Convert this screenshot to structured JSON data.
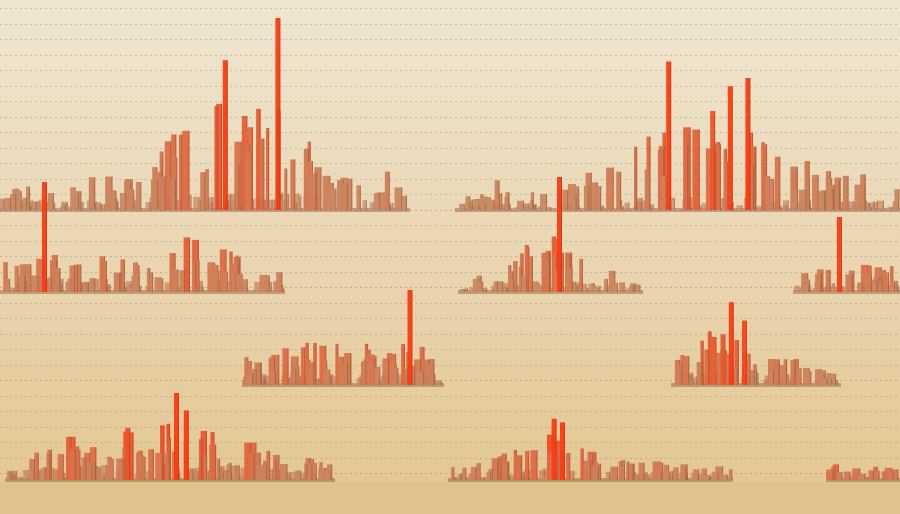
{
  "colors": {
    "bg_top": "#efe6d2",
    "bg_bottom": "#e3c590",
    "ground": "#e0c28c",
    "gridline": "#7f7a70",
    "gridline_hot": "#e0522e",
    "bar_base": "#c68d66",
    "bar_hot": "#ff3a10",
    "bar_shadow": "#6b3a22"
  },
  "clusters": [
    {
      "name": "cluster-row1-left",
      "seed": 11,
      "count": 70,
      "base_height": 18,
      "envelope": [
        [
          0,
          0.25
        ],
        [
          0.3,
          0.45
        ],
        [
          0.45,
          1.0
        ],
        [
          0.7,
          1.0
        ],
        [
          0.85,
          0.4
        ],
        [
          1,
          0.15
        ]
      ],
      "spikes": [
        [
          0.55,
          0.78
        ],
        [
          0.68,
          1.0
        ],
        [
          0.95,
          0.2
        ]
      ]
    },
    {
      "name": "cluster-row1-right",
      "seed": 23,
      "count": 80,
      "base_height": 14,
      "envelope": [
        [
          0,
          0.1
        ],
        [
          0.2,
          0.25
        ],
        [
          0.45,
          1.0
        ],
        [
          0.7,
          0.9
        ],
        [
          1,
          0.4
        ]
      ],
      "spikes": [
        [
          0.09,
          0.18
        ],
        [
          0.48,
          0.9
        ],
        [
          0.58,
          0.6
        ],
        [
          0.62,
          0.75
        ],
        [
          0.66,
          0.8
        ]
      ]
    },
    {
      "name": "cluster-row2-left",
      "seed": 37,
      "count": 55,
      "base_height": 18,
      "envelope": [
        [
          0,
          0.5
        ],
        [
          0.4,
          0.7
        ],
        [
          0.55,
          0.2
        ],
        [
          0.62,
          0.9
        ],
        [
          1,
          0.4
        ]
      ],
      "spikes": [
        [
          0.15,
          1.0
        ]
      ]
    },
    {
      "name": "cluster-row2-mid",
      "seed": 41,
      "count": 35,
      "base_height": 12,
      "envelope": [
        [
          0,
          0.1
        ],
        [
          0.3,
          0.7
        ],
        [
          0.5,
          1.0
        ],
        [
          0.8,
          0.5
        ],
        [
          1,
          0.1
        ]
      ],
      "spikes": [
        [
          0.55,
          1.0
        ]
      ]
    },
    {
      "name": "cluster-row2-right",
      "seed": 53,
      "count": 25,
      "base_height": 12,
      "envelope": [
        [
          0,
          0.4
        ],
        [
          0.5,
          0.7
        ],
        [
          1,
          0.6
        ]
      ],
      "spikes": [
        [
          0.43,
          1.0
        ]
      ]
    },
    {
      "name": "cluster-row3-mid",
      "seed": 67,
      "count": 50,
      "base_height": 14,
      "envelope": [
        [
          0,
          0.6
        ],
        [
          0.5,
          0.9
        ],
        [
          1,
          0.7
        ]
      ],
      "spikes": [
        [
          0.84,
          1.0
        ]
      ]
    },
    {
      "name": "cluster-row3-right",
      "seed": 71,
      "count": 40,
      "base_height": 14,
      "envelope": [
        [
          0,
          0.6
        ],
        [
          0.2,
          1.0
        ],
        [
          0.6,
          0.7
        ],
        [
          1,
          0.2
        ]
      ],
      "spikes": [
        [
          0.3,
          0.55
        ],
        [
          0.35,
          0.9
        ],
        [
          0.43,
          0.7
        ]
      ]
    },
    {
      "name": "cluster-row4-left",
      "seed": 83,
      "count": 70,
      "base_height": 18,
      "envelope": [
        [
          0,
          0.2
        ],
        [
          0.2,
          0.8
        ],
        [
          0.5,
          1.0
        ],
        [
          0.75,
          0.7
        ],
        [
          1,
          0.05
        ]
      ],
      "spikes": [
        [
          0.52,
          1.0
        ],
        [
          0.55,
          0.8
        ],
        [
          0.37,
          0.6
        ]
      ]
    },
    {
      "name": "cluster-row4-mid",
      "seed": 97,
      "count": 60,
      "base_height": 12,
      "envelope": [
        [
          0,
          0.2
        ],
        [
          0.35,
          1.0
        ],
        [
          0.6,
          0.6
        ],
        [
          1,
          0.1
        ]
      ],
      "spikes": [
        [
          0.37,
          0.85
        ],
        [
          0.4,
          0.8
        ]
      ]
    },
    {
      "name": "cluster-row4-right",
      "seed": 101,
      "count": 15,
      "base_height": 10,
      "envelope": [
        [
          0,
          0.6
        ],
        [
          1,
          0.3
        ]
      ],
      "spikes": []
    }
  ]
}
